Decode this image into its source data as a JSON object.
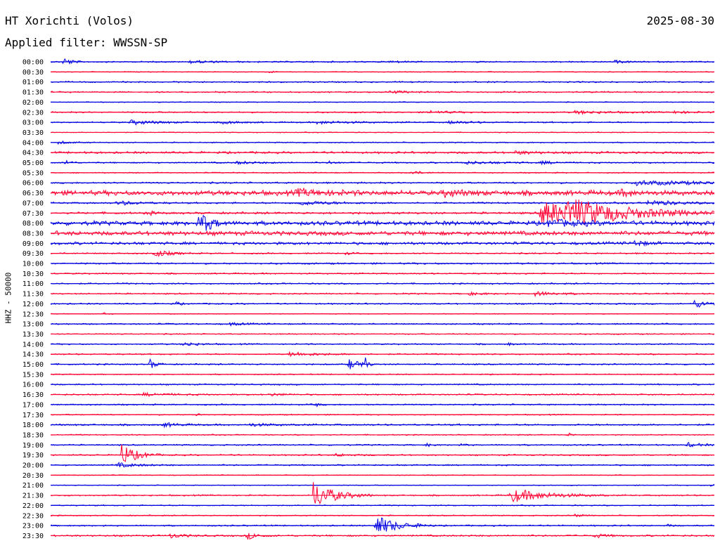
{
  "header": {
    "station": "HT Xorichti (Volos)",
    "date": "2025-08-30",
    "filter_label": "Applied filter: WWSSN-SP",
    "channel_label": "HHZ - 50000"
  },
  "colors": {
    "even_row": "#0000e0",
    "odd_row": "#ff0033",
    "background": "#ffffff",
    "text": "#000000"
  },
  "chart_data": {
    "type": "line",
    "title": "HT Xorichti (Volos)",
    "ylabel": "HHZ - 50000",
    "xlabel": "",
    "row_minutes": 30,
    "rows": [
      {
        "label": "00:00",
        "noise": 1,
        "events": [
          {
            "x": 0.02,
            "amp": 6,
            "dur": 0.01
          },
          {
            "x": 0.21,
            "amp": 2,
            "dur": 0.03
          },
          {
            "x": 0.51,
            "amp": 1.5,
            "dur": 0.02
          },
          {
            "x": 0.85,
            "amp": 1.5,
            "dur": 0.02
          }
        ]
      },
      {
        "label": "00:30",
        "noise": 0.6,
        "events": [
          {
            "x": 0.33,
            "amp": 2,
            "dur": 0.005
          }
        ]
      },
      {
        "label": "01:00",
        "noise": 1,
        "events": []
      },
      {
        "label": "01:30",
        "noise": 1,
        "events": [
          {
            "x": 0.51,
            "amp": 1.5,
            "dur": 0.04
          }
        ]
      },
      {
        "label": "02:00",
        "noise": 0.6,
        "events": []
      },
      {
        "label": "02:30",
        "noise": 1,
        "events": [
          {
            "x": 0.57,
            "amp": 2,
            "dur": 0.03
          },
          {
            "x": 0.79,
            "amp": 2,
            "dur": 0.05
          },
          {
            "x": 0.94,
            "amp": 2,
            "dur": 0.02
          }
        ]
      },
      {
        "label": "03:00",
        "noise": 1,
        "events": [
          {
            "x": 0.12,
            "amp": 3,
            "dur": 0.04
          },
          {
            "x": 0.26,
            "amp": 2.5,
            "dur": 0.02
          },
          {
            "x": 0.4,
            "amp": 2,
            "dur": 0.05
          },
          {
            "x": 0.6,
            "amp": 2,
            "dur": 0.03
          }
        ]
      },
      {
        "label": "03:30",
        "noise": 0.6,
        "events": []
      },
      {
        "label": "04:00",
        "noise": 0.8,
        "events": [
          {
            "x": 0.01,
            "amp": 2,
            "dur": 0.02
          }
        ]
      },
      {
        "label": "04:30",
        "noise": 1.5,
        "events": [
          {
            "x": 0.7,
            "amp": 2,
            "dur": 0.03
          }
        ]
      },
      {
        "label": "05:00",
        "noise": 1,
        "events": [
          {
            "x": 0.023,
            "amp": 5,
            "dur": 0.006
          },
          {
            "x": 0.28,
            "amp": 2,
            "dur": 0.03
          },
          {
            "x": 0.42,
            "amp": 2,
            "dur": 0.01
          },
          {
            "x": 0.62,
            "amp": 2,
            "dur": 0.05
          },
          {
            "x": 0.74,
            "amp": 2,
            "dur": 0.02
          }
        ]
      },
      {
        "label": "05:30",
        "noise": 0.8,
        "events": [
          {
            "x": 0.54,
            "amp": 3,
            "dur": 0.015
          }
        ]
      },
      {
        "label": "06:00",
        "noise": 1.2,
        "events": [
          {
            "x": 0.88,
            "amp": 3,
            "dur": 0.12
          }
        ]
      },
      {
        "label": "06:30",
        "noise": 3.5,
        "events": [
          {
            "x": 0.37,
            "amp": 4,
            "dur": 0.05
          },
          {
            "x": 0.59,
            "amp": 4,
            "dur": 0.03
          },
          {
            "x": 0.86,
            "amp": 4,
            "dur": 0.02
          }
        ]
      },
      {
        "label": "07:00",
        "noise": 1.2,
        "events": [
          {
            "x": 0.1,
            "amp": 3,
            "dur": 0.03
          },
          {
            "x": 0.37,
            "amp": 3,
            "dur": 0.05
          },
          {
            "x": 0.9,
            "amp": 4,
            "dur": 0.04
          }
        ]
      },
      {
        "label": "07:30",
        "noise": 1.5,
        "events": [
          {
            "x": 0.145,
            "amp": 3,
            "dur": 0.01
          },
          {
            "x": 0.738,
            "amp": 16,
            "dur": 0.11
          },
          {
            "x": 0.78,
            "amp": 12,
            "dur": 0.06
          }
        ]
      },
      {
        "label": "08:00",
        "noise": 3,
        "events": [
          {
            "x": 0.223,
            "amp": 20,
            "dur": 0.015
          },
          {
            "x": 0.75,
            "amp": 4,
            "dur": 0.05
          }
        ]
      },
      {
        "label": "08:30",
        "noise": 3,
        "events": []
      },
      {
        "label": "09:00",
        "noise": 2,
        "events": [
          {
            "x": 0.88,
            "amp": 4,
            "dur": 0.015
          }
        ]
      },
      {
        "label": "09:30",
        "noise": 1,
        "events": [
          {
            "x": 0.155,
            "amp": 6,
            "dur": 0.02
          },
          {
            "x": 0.445,
            "amp": 3,
            "dur": 0.005
          }
        ]
      },
      {
        "label": "10:00",
        "noise": 1.2,
        "events": []
      },
      {
        "label": "10:30",
        "noise": 1,
        "events": []
      },
      {
        "label": "11:00",
        "noise": 1,
        "events": []
      },
      {
        "label": "11:30",
        "noise": 1,
        "events": [
          {
            "x": 0.63,
            "amp": 2,
            "dur": 0.02
          },
          {
            "x": 0.73,
            "amp": 3,
            "dur": 0.03
          }
        ]
      },
      {
        "label": "12:00",
        "noise": 1,
        "events": [
          {
            "x": 0.188,
            "amp": 4,
            "dur": 0.005
          },
          {
            "x": 0.97,
            "amp": 5,
            "dur": 0.03
          }
        ]
      },
      {
        "label": "12:30",
        "noise": 0.6,
        "events": [
          {
            "x": 0.08,
            "amp": 2,
            "dur": 0.005
          }
        ]
      },
      {
        "label": "13:00",
        "noise": 1,
        "events": [
          {
            "x": 0.27,
            "amp": 2,
            "dur": 0.02
          }
        ]
      },
      {
        "label": "13:30",
        "noise": 0.8,
        "events": []
      },
      {
        "label": "14:00",
        "noise": 1,
        "events": [
          {
            "x": 0.2,
            "amp": 3,
            "dur": 0.02
          },
          {
            "x": 0.69,
            "amp": 2,
            "dur": 0.005
          }
        ]
      },
      {
        "label": "14:30",
        "noise": 1,
        "events": [
          {
            "x": 0.36,
            "amp": 3,
            "dur": 0.04
          }
        ]
      },
      {
        "label": "15:00",
        "noise": 1,
        "events": [
          {
            "x": 0.15,
            "amp": 7,
            "dur": 0.008
          },
          {
            "x": 0.45,
            "amp": 10,
            "dur": 0.005
          },
          {
            "x": 0.462,
            "amp": 10,
            "dur": 0.005
          },
          {
            "x": 0.474,
            "amp": 9,
            "dur": 0.005
          }
        ]
      },
      {
        "label": "15:30",
        "noise": 0.8,
        "events": []
      },
      {
        "label": "16:00",
        "noise": 1,
        "events": []
      },
      {
        "label": "16:30",
        "noise": 1,
        "events": [
          {
            "x": 0.14,
            "amp": 2,
            "dur": 0.04
          },
          {
            "x": 0.33,
            "amp": 2,
            "dur": 0.02
          }
        ]
      },
      {
        "label": "17:00",
        "noise": 1,
        "events": [
          {
            "x": 0.4,
            "amp": 3,
            "dur": 0.005
          }
        ]
      },
      {
        "label": "17:30",
        "noise": 0.8,
        "events": [
          {
            "x": 0.22,
            "amp": 3,
            "dur": 0.005
          }
        ]
      },
      {
        "label": "18:00",
        "noise": 1.2,
        "events": [
          {
            "x": 0.17,
            "amp": 3,
            "dur": 0.02
          },
          {
            "x": 0.3,
            "amp": 2,
            "dur": 0.03
          }
        ]
      },
      {
        "label": "18:30",
        "noise": 0.8,
        "events": [
          {
            "x": 0.78,
            "amp": 3,
            "dur": 0.005
          }
        ]
      },
      {
        "label": "19:00",
        "noise": 1,
        "events": [
          {
            "x": 0.567,
            "amp": 3,
            "dur": 0.005
          },
          {
            "x": 0.62,
            "amp": 3,
            "dur": 0.005
          },
          {
            "x": 0.96,
            "amp": 3,
            "dur": 0.02
          }
        ]
      },
      {
        "label": "19:30",
        "noise": 1,
        "events": [
          {
            "x": 0.107,
            "amp": 16,
            "dur": 0.02
          },
          {
            "x": 0.43,
            "amp": 2,
            "dur": 0.02
          }
        ]
      },
      {
        "label": "20:00",
        "noise": 1,
        "events": [
          {
            "x": 0.1,
            "amp": 3,
            "dur": 0.03
          }
        ]
      },
      {
        "label": "20:30",
        "noise": 0.6,
        "events": []
      },
      {
        "label": "21:00",
        "noise": 0.6,
        "events": [
          {
            "x": 0.996,
            "amp": 3,
            "dur": 0.005
          }
        ]
      },
      {
        "label": "21:30",
        "noise": 1,
        "events": [
          {
            "x": 0.395,
            "amp": 20,
            "dur": 0.03
          },
          {
            "x": 0.692,
            "amp": 10,
            "dur": 0.05
          }
        ]
      },
      {
        "label": "22:00",
        "noise": 0.8,
        "events": []
      },
      {
        "label": "22:30",
        "noise": 0.8,
        "events": [
          {
            "x": 0.79,
            "amp": 2,
            "dur": 0.01
          }
        ]
      },
      {
        "label": "23:00",
        "noise": 1,
        "events": [
          {
            "x": 0.488,
            "amp": 16,
            "dur": 0.03
          },
          {
            "x": 0.93,
            "amp": 2,
            "dur": 0.005
          }
        ]
      },
      {
        "label": "23:30",
        "noise": 1.2,
        "events": [
          {
            "x": 0.18,
            "amp": 3,
            "dur": 0.02
          },
          {
            "x": 0.296,
            "amp": 5,
            "dur": 0.015
          },
          {
            "x": 0.82,
            "amp": 3,
            "dur": 0.015
          }
        ]
      }
    ]
  }
}
